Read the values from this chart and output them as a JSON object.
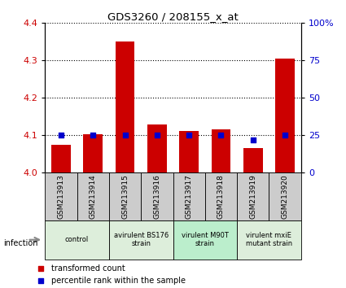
{
  "title": "GDS3260 / 208155_x_at",
  "samples": [
    "GSM213913",
    "GSM213914",
    "GSM213915",
    "GSM213916",
    "GSM213917",
    "GSM213918",
    "GSM213919",
    "GSM213920"
  ],
  "transformed_count": [
    4.075,
    4.102,
    4.35,
    4.13,
    4.112,
    4.115,
    4.065,
    4.305
  ],
  "percentile_rank": [
    25,
    25,
    25,
    25,
    25,
    25,
    22,
    25
  ],
  "ylim_left": [
    4.0,
    4.4
  ],
  "ylim_right": [
    0,
    100
  ],
  "yticks_left": [
    4.0,
    4.1,
    4.2,
    4.3,
    4.4
  ],
  "yticks_right": [
    0,
    25,
    50,
    75,
    100
  ],
  "ytick_labels_right": [
    "0",
    "25",
    "50",
    "75",
    "100%"
  ],
  "bar_color": "#cc0000",
  "dot_color": "#0000cc",
  "group_info": [
    {
      "label": "control",
      "start": 0,
      "end": 1,
      "color": "#ddeedb"
    },
    {
      "label": "avirulent BS176\nstrain",
      "start": 2,
      "end": 3,
      "color": "#ddeedb"
    },
    {
      "label": "virulent M90T\nstrain",
      "start": 4,
      "end": 5,
      "color": "#bbeecc"
    },
    {
      "label": "virulent mxiE\nmutant strain",
      "start": 6,
      "end": 7,
      "color": "#ddeedb"
    }
  ],
  "sample_box_color": "#cccccc",
  "legend_items": [
    {
      "label": "transformed count",
      "color": "#cc0000"
    },
    {
      "label": "percentile rank within the sample",
      "color": "#0000cc"
    }
  ],
  "infection_label": "infection",
  "left_tick_color": "#cc0000",
  "right_tick_color": "#0000cc"
}
